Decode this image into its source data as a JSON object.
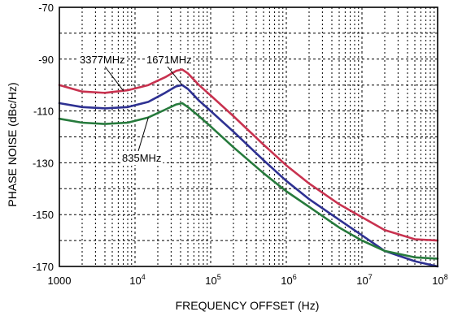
{
  "chart_data": {
    "type": "line",
    "title": "",
    "xlabel": "FREQUENCY OFFSET (Hz)",
    "ylabel": "PHASE NOISE (dBc/Hz)",
    "x_scale": "log",
    "xlim": [
      1000,
      100000000
    ],
    "ylim": [
      -170,
      -70
    ],
    "x_ticks": [
      {
        "value": 1000,
        "base": "1000",
        "exp": ""
      },
      {
        "value": 10000,
        "base": "10",
        "exp": "4"
      },
      {
        "value": 100000,
        "base": "10",
        "exp": "5"
      },
      {
        "value": 1000000,
        "base": "10",
        "exp": "6"
      },
      {
        "value": 10000000,
        "base": "10",
        "exp": "7"
      },
      {
        "value": 100000000,
        "base": "10",
        "exp": "8"
      }
    ],
    "y_ticks": [
      {
        "value": -70,
        "label": "-70"
      },
      {
        "value": -90,
        "label": "-90"
      },
      {
        "value": -110,
        "label": "-110"
      },
      {
        "value": -130,
        "label": "-130"
      },
      {
        "value": -150,
        "label": "-150"
      },
      {
        "value": -170,
        "label": "-170"
      }
    ],
    "grid": true,
    "series": [
      {
        "name": "3377MHz",
        "color": "#c8324f",
        "x": [
          1000,
          2000,
          4000,
          8000,
          15000,
          25000,
          35000,
          42000,
          50000,
          70000,
          100000,
          200000,
          500000,
          1000000,
          2000000,
          5000000,
          10000000,
          20000000,
          50000000,
          100000000
        ],
        "y": [
          -100,
          -102.5,
          -103,
          -102,
          -100,
          -97,
          -94.5,
          -94,
          -95.5,
          -100,
          -104,
          -112,
          -123,
          -131,
          -138,
          -146,
          -151,
          -156,
          -159.5,
          -160
        ]
      },
      {
        "name": "1671MHz",
        "color": "#2e3192",
        "x": [
          1000,
          2000,
          4000,
          8000,
          15000,
          25000,
          35000,
          42000,
          50000,
          70000,
          100000,
          200000,
          500000,
          1000000,
          2000000,
          5000000,
          10000000,
          20000000,
          50000000,
          100000000
        ],
        "y": [
          -107,
          -108.5,
          -109,
          -108.5,
          -106.5,
          -103,
          -100.5,
          -100,
          -101.5,
          -106,
          -110,
          -118,
          -129,
          -137,
          -144,
          -152,
          -158,
          -164,
          -168,
          -170
        ]
      },
      {
        "name": "835MHz",
        "color": "#267a3c",
        "x": [
          1000,
          2000,
          4000,
          8000,
          15000,
          25000,
          35000,
          42000,
          50000,
          70000,
          100000,
          200000,
          500000,
          1000000,
          2000000,
          5000000,
          10000000,
          20000000,
          50000000,
          100000000
        ],
        "y": [
          -113,
          -114.5,
          -115,
          -114.5,
          -112.5,
          -109.5,
          -107.5,
          -107,
          -108.5,
          -112,
          -116,
          -124,
          -134,
          -141,
          -147,
          -155,
          -160,
          -164,
          -166.5,
          -167
        ]
      }
    ],
    "annotations": [
      {
        "text": "3377MHz",
        "target_series": 0
      },
      {
        "text": "1671MHz",
        "target_series": 1
      },
      {
        "text": "835MHz",
        "target_series": 2
      }
    ]
  }
}
